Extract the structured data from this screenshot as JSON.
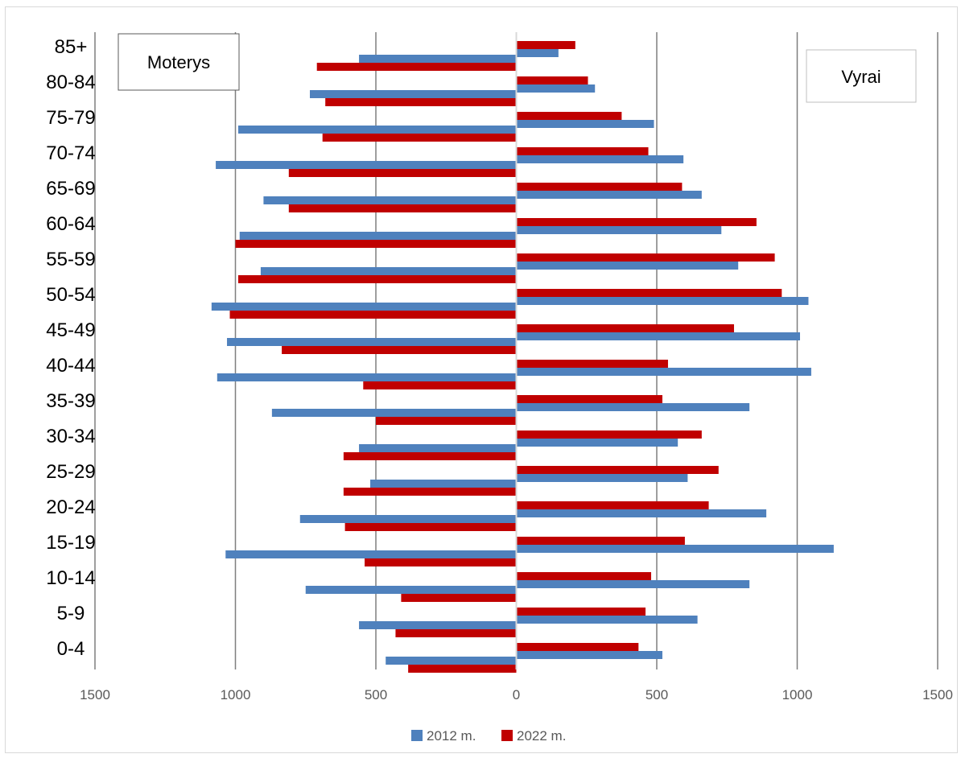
{
  "chart_data": {
    "type": "bar",
    "orientation": "horizontal",
    "categories": [
      "0-4",
      "5-9",
      "10-14",
      "15-19",
      "20-24",
      "25-29",
      "30-34",
      "35-39",
      "40-44",
      "45-49",
      "50-54",
      "55-59",
      "60-64",
      "65-69",
      "70-74",
      "75-79",
      "80-84",
      "85+"
    ],
    "xlim": [
      -1500,
      1500
    ],
    "x_ticks": [
      "1500",
      "1000",
      "500",
      "0",
      "500",
      "1000",
      "1500"
    ],
    "grid": true,
    "legend_position": "bottom",
    "left_box": "Moterys",
    "right_box": "Vyrai",
    "series": [
      {
        "name": "2012 m.",
        "color": "#4f81bd",
        "female": [
          465,
          560,
          750,
          1035,
          770,
          520,
          560,
          870,
          1065,
          1030,
          1085,
          910,
          985,
          900,
          1070,
          990,
          735,
          560
        ],
        "male": [
          520,
          645,
          830,
          1130,
          890,
          610,
          575,
          830,
          1050,
          1010,
          1040,
          790,
          730,
          660,
          595,
          490,
          280,
          150
        ]
      },
      {
        "name": "2022 m.",
        "color": "#c00000",
        "female": [
          385,
          430,
          410,
          540,
          610,
          615,
          615,
          500,
          545,
          835,
          1020,
          990,
          1000,
          810,
          810,
          690,
          680,
          710
        ],
        "male": [
          435,
          460,
          480,
          600,
          685,
          720,
          660,
          520,
          540,
          775,
          945,
          920,
          855,
          590,
          470,
          375,
          255,
          210
        ]
      }
    ]
  }
}
